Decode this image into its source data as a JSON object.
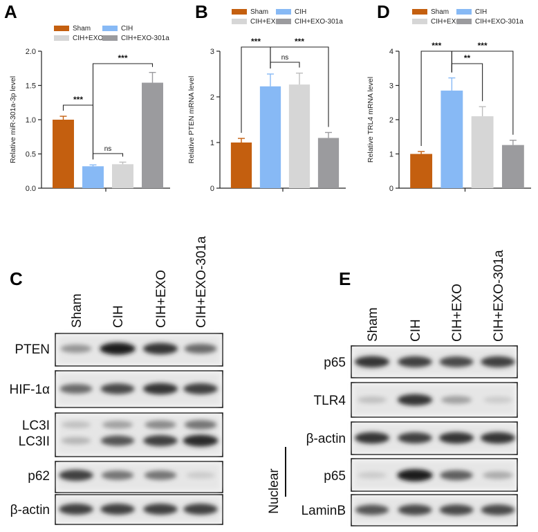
{
  "panels": {
    "a": "A",
    "b": "B",
    "c": "C",
    "d": "D",
    "e": "E"
  },
  "legend_labels": [
    "Sham",
    "CIH",
    "CIH+EXO",
    "CIH+EXO-301a"
  ],
  "colors": {
    "Sham": "#c45f0f",
    "CIH": "#87b9f5",
    "CIH+EXO": "#d6d6d6",
    "CIH+EXO-301a": "#9b9b9e"
  },
  "chart_data": [
    {
      "id": "A",
      "type": "bar",
      "categories": [
        "Sham",
        "CIH",
        "CIH+EXO",
        "CIH+EXO-301a"
      ],
      "values": [
        1.0,
        0.32,
        0.35,
        1.54
      ],
      "errors": [
        0.05,
        0.02,
        0.03,
        0.15
      ],
      "ylabel": "Relative miR-301a-3p level",
      "ylim": [
        0,
        2.0
      ],
      "yticks": [
        "0.0",
        "0.5",
        "1.0",
        "1.5",
        "2.0"
      ],
      "significance": [
        {
          "from": 0,
          "to": 1,
          "label": "***"
        },
        {
          "from": 1,
          "to": 2,
          "label": "ns"
        },
        {
          "from": 1,
          "to": 3,
          "label": "***"
        }
      ]
    },
    {
      "id": "B",
      "type": "bar",
      "categories": [
        "Sham",
        "CIH",
        "CIH+EXO",
        "CIH+EXO-301a"
      ],
      "values": [
        1.0,
        2.23,
        2.27,
        1.1
      ],
      "errors": [
        0.09,
        0.27,
        0.25,
        0.12
      ],
      "ylabel": "Relative PTEN mRNA level",
      "ylim": [
        0,
        3
      ],
      "yticks": [
        "0",
        "1",
        "2",
        "3"
      ],
      "significance": [
        {
          "from": 0,
          "to": 1,
          "label": "***"
        },
        {
          "from": 1,
          "to": 2,
          "label": "ns"
        },
        {
          "from": 1,
          "to": 3,
          "label": "***"
        }
      ]
    },
    {
      "id": "D",
      "type": "bar",
      "categories": [
        "Sham",
        "CIH",
        "CIH+EXO",
        "CIH+EXO-301a"
      ],
      "values": [
        1.0,
        2.85,
        2.1,
        1.26
      ],
      "errors": [
        0.07,
        0.37,
        0.28,
        0.14
      ],
      "ylabel": "Relative TRL4 mRNA level",
      "ylim": [
        0,
        4
      ],
      "yticks": [
        "0",
        "1",
        "2",
        "3",
        "4"
      ],
      "significance": [
        {
          "from": 0,
          "to": 1,
          "label": "***"
        },
        {
          "from": 1,
          "to": 2,
          "label": "**"
        },
        {
          "from": 1,
          "to": 3,
          "label": "***"
        }
      ]
    }
  ],
  "blot_c": {
    "columns": [
      "Sham",
      "CIH",
      "CIH+EXO",
      "CIH+EXO-301a"
    ],
    "rows": [
      {
        "label": "PTEN",
        "bands": [
          0.4,
          0.95,
          0.85,
          0.6
        ]
      },
      {
        "label": "HIF-1α",
        "bands": [
          0.6,
          0.75,
          0.85,
          0.8
        ]
      },
      {
        "label": "LC3I",
        "bands": [
          0.2,
          0.35,
          0.45,
          0.55
        ]
      },
      {
        "label": "LC3II",
        "bands": [
          0.25,
          0.7,
          0.8,
          0.9
        ]
      },
      {
        "label": "p62",
        "bands": [
          0.8,
          0.55,
          0.55,
          0.15
        ]
      },
      {
        "label": "β-actin",
        "bands": [
          0.8,
          0.8,
          0.8,
          0.8
        ]
      }
    ]
  },
  "blot_e": {
    "columns": [
      "Sham",
      "CIH",
      "CIH+EXO",
      "CIH+EXO-301a"
    ],
    "nuclear_label": "Nuclear",
    "rows": [
      {
        "label": "p65",
        "bands": [
          0.85,
          0.8,
          0.75,
          0.8
        ]
      },
      {
        "label": "TLR4",
        "bands": [
          0.2,
          0.85,
          0.35,
          0.15
        ]
      },
      {
        "label": "β-actin",
        "bands": [
          0.85,
          0.8,
          0.85,
          0.85
        ]
      },
      {
        "label": "p65",
        "bands": [
          0.15,
          0.95,
          0.65,
          0.3
        ]
      },
      {
        "label": "LaminB",
        "bands": [
          0.7,
          0.75,
          0.75,
          0.75
        ]
      }
    ]
  }
}
